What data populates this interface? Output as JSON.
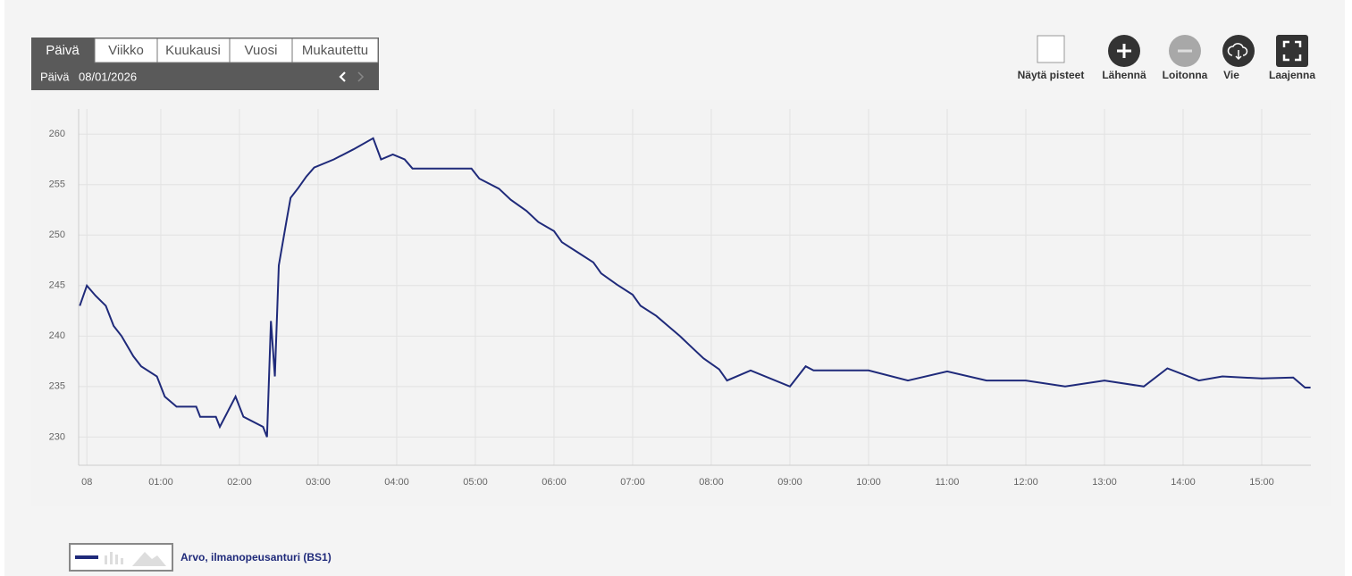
{
  "tabs": [
    "Päivä",
    "Viikko",
    "Kuukausi",
    "Vuosi",
    "Mukautettu"
  ],
  "period_label": "Päivä",
  "date": "08/01/2026",
  "toolbar": [
    "Näytä pisteet",
    "Lähennä",
    "Loitonna",
    "Vie",
    "Laajenna"
  ],
  "chart_data": {
    "type": "line",
    "grid": true,
    "x": [
      -0.03,
      0.06,
      0.17,
      0.3,
      0.4,
      0.5,
      0.65,
      0.75,
      0.95,
      1.05,
      1.2,
      1.45,
      1.5,
      1.7,
      1.75,
      1.95,
      2.05,
      2.3,
      2.35,
      2.4,
      2.45,
      2.5,
      2.6,
      2.65,
      2.75,
      2.85,
      2.95,
      3.2,
      3.45,
      3.7,
      3.8,
      3.95,
      4.1,
      4.2,
      4.95,
      5.05,
      5.3,
      5.45,
      5.65,
      5.8,
      6.0,
      6.1,
      6.3,
      6.5,
      6.6,
      6.8,
      7.0,
      7.1,
      7.3,
      7.45,
      7.6,
      7.75,
      7.9,
      8.1,
      8.2,
      8.5,
      9.0,
      9.2,
      9.3,
      10.0,
      10.5,
      11.0,
      11.5,
      12.0,
      12.5,
      13.0,
      13.5,
      13.8,
      14.2,
      14.5,
      15.0,
      15.4,
      15.55,
      15.62
    ],
    "series": [
      {
        "name": "Arvo, ilmanopeusanturi (BS1)",
        "color": "#1f2a7a",
        "values": [
          243,
          245,
          244,
          243,
          241,
          240,
          238,
          237,
          236,
          234,
          233,
          233,
          232,
          232,
          231,
          234,
          232,
          231,
          230,
          241.5,
          236,
          247,
          251.5,
          253.7,
          254.7,
          255.8,
          256.7,
          257.5,
          258.5,
          259.6,
          257.5,
          258,
          257.5,
          256.6,
          256.6,
          255.6,
          254.6,
          253.5,
          252.4,
          251.3,
          250.4,
          249.3,
          248.3,
          247.3,
          246.2,
          245.1,
          244.1,
          243,
          242,
          241,
          240,
          238.9,
          237.8,
          236.7,
          235.6,
          236.6,
          235,
          237,
          236.6,
          236.6,
          235.6,
          236.5,
          235.6,
          235.6,
          235,
          235.6,
          235,
          236.8,
          235.6,
          236,
          235.8,
          235.9,
          234.9,
          234.9
        ]
      }
    ],
    "xlim": [
      -0.045,
      15.625
    ],
    "ylim": [
      227.2,
      262.5
    ],
    "xticks": [
      {
        "value": 0.06,
        "label": "08"
      },
      {
        "value": 1,
        "label": "01:00"
      },
      {
        "value": 2,
        "label": "02:00"
      },
      {
        "value": 3,
        "label": "03:00"
      },
      {
        "value": 4,
        "label": "04:00"
      },
      {
        "value": 5,
        "label": "05:00"
      },
      {
        "value": 6,
        "label": "06:00"
      },
      {
        "value": 7,
        "label": "07:00"
      },
      {
        "value": 8,
        "label": "08:00"
      },
      {
        "value": 9,
        "label": "09:00"
      },
      {
        "value": 10,
        "label": "10:00"
      },
      {
        "value": 11,
        "label": "11:00"
      },
      {
        "value": 12,
        "label": "12:00"
      },
      {
        "value": 13,
        "label": "13:00"
      },
      {
        "value": 14,
        "label": "14:00"
      },
      {
        "value": 15,
        "label": "15:00"
      }
    ],
    "yticks": [
      230,
      235,
      240,
      245,
      250,
      255,
      260
    ]
  }
}
